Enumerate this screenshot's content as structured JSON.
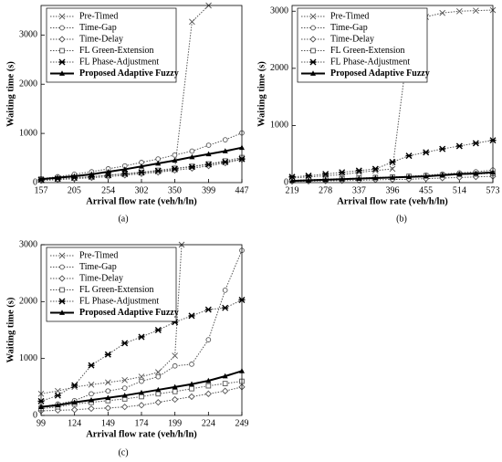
{
  "chart_data": [
    {
      "type": "line",
      "label": "(a)",
      "x_label": "Arrival flow rate (veh/h/ln)",
      "y_label": "Waiting time (s)",
      "x": [
        157,
        181,
        205,
        230,
        254,
        278,
        302,
        326,
        350,
        375,
        399,
        423,
        447
      ],
      "xlim": [
        157,
        447
      ],
      "xticks": [
        157,
        205,
        254,
        302,
        350,
        399,
        447
      ],
      "ylim": [
        0,
        3600
      ],
      "yticks": [
        0,
        1000,
        2000,
        3000
      ],
      "legend": "upper left",
      "series": [
        {
          "name": "Pre-Timed",
          "color": "#555555",
          "marker": "x",
          "dash": "dotted",
          "line_width": 1,
          "values": [
            60,
            80,
            100,
            120,
            150,
            170,
            200,
            230,
            260,
            3270,
            3600,
            null,
            null
          ]
        },
        {
          "name": "Time-Gap",
          "color": "#555555",
          "marker": "circle",
          "dash": "dotted",
          "line_width": 1,
          "values": [
            80,
            120,
            170,
            220,
            280,
            340,
            410,
            480,
            560,
            640,
            760,
            870,
            1010
          ]
        },
        {
          "name": "Time-Delay",
          "color": "#555555",
          "marker": "diamond",
          "dash": "dotted",
          "line_width": 1,
          "values": [
            40,
            60,
            80,
            100,
            120,
            150,
            180,
            210,
            250,
            290,
            340,
            400,
            470
          ]
        },
        {
          "name": "FL Green-Extension",
          "color": "#555555",
          "marker": "square",
          "dash": "dotted",
          "line_width": 1,
          "values": [
            50,
            70,
            90,
            120,
            150,
            180,
            210,
            250,
            290,
            330,
            380,
            440,
            510
          ]
        },
        {
          "name": "FL Phase-Adjustment",
          "color": "#555555",
          "marker": "star",
          "dash": "dotted",
          "line_width": 1,
          "values": [
            60,
            80,
            100,
            120,
            150,
            180,
            210,
            240,
            280,
            320,
            370,
            420,
            480
          ]
        },
        {
          "name": "Proposed Adaptive Fuzzy",
          "color": "#000000",
          "marker": "triangle",
          "dash": "solid",
          "line_width": 2,
          "values": [
            70,
            100,
            130,
            170,
            220,
            270,
            330,
            390,
            450,
            520,
            580,
            640,
            710
          ]
        }
      ]
    },
    {
      "type": "line",
      "label": "(b)",
      "x_label": "Arrival flow rate (veh/h/ln)",
      "y_label": "Waiting time (s)",
      "x": [
        219,
        248,
        278,
        307,
        337,
        366,
        396,
        425,
        455,
        484,
        514,
        543,
        573
      ],
      "xlim": [
        219,
        573
      ],
      "xticks": [
        219,
        278,
        337,
        396,
        455,
        514,
        573
      ],
      "ylim": [
        0,
        3100
      ],
      "yticks": [
        0,
        1000,
        2000,
        3000
      ],
      "legend": "upper left",
      "series": [
        {
          "name": "Pre-Timed",
          "color": "#555555",
          "marker": "x",
          "dash": "dotted",
          "line_width": 1,
          "values": [
            80,
            100,
            120,
            140,
            180,
            210,
            240,
            2500,
            2900,
            2970,
            3000,
            3010,
            3020
          ]
        },
        {
          "name": "Time-Gap",
          "color": "#555555",
          "marker": "circle",
          "dash": "dotted",
          "line_width": 1,
          "values": [
            30,
            40,
            50,
            60,
            70,
            80,
            90,
            110,
            130,
            150,
            170,
            190,
            220
          ]
        },
        {
          "name": "Time-Delay",
          "color": "#555555",
          "marker": "diamond",
          "dash": "dotted",
          "line_width": 1,
          "values": [
            20,
            25,
            30,
            35,
            40,
            50,
            55,
            60,
            70,
            80,
            90,
            100,
            110
          ]
        },
        {
          "name": "FL Green-Extension",
          "color": "#555555",
          "marker": "square",
          "dash": "dotted",
          "line_width": 1,
          "values": [
            40,
            50,
            60,
            70,
            80,
            90,
            100,
            110,
            120,
            130,
            140,
            150,
            160
          ]
        },
        {
          "name": "FL Phase-Adjustment",
          "color": "#555555",
          "marker": "star",
          "dash": "dotted",
          "line_width": 1,
          "values": [
            100,
            120,
            150,
            180,
            210,
            240,
            360,
            470,
            530,
            590,
            640,
            690,
            740
          ]
        },
        {
          "name": "Proposed Adaptive Fuzzy",
          "color": "#000000",
          "marker": "triangle",
          "dash": "solid",
          "line_width": 2,
          "values": [
            30,
            40,
            50,
            60,
            70,
            80,
            90,
            100,
            110,
            130,
            150,
            160,
            180
          ]
        }
      ]
    },
    {
      "type": "line",
      "label": "(c)",
      "x_label": "Arrival flow rate (veh/h/ln)",
      "y_label": "Waiting time (s)",
      "x": [
        99,
        111.5,
        124,
        136.5,
        149,
        161.5,
        174,
        186.5,
        199,
        211.5,
        224,
        236.5,
        249
      ],
      "xlim": [
        99,
        249
      ],
      "xticks": [
        99,
        124,
        149,
        174,
        199,
        224,
        249
      ],
      "ylim": [
        0,
        3000
      ],
      "yticks": [
        0,
        1000,
        2000,
        3000
      ],
      "legend": "upper left",
      "series": [
        {
          "name": "Pre-Timed",
          "color": "#555555",
          "marker": "x",
          "dash": "dotted",
          "line_width": 1,
          "x": [
            99,
            111.5,
            124,
            136.5,
            149,
            161.5,
            174,
            186.5,
            199,
            204
          ],
          "values": [
            380,
            430,
            500,
            540,
            580,
            620,
            680,
            760,
            1050,
            3000
          ]
        },
        {
          "name": "Time-Gap",
          "color": "#555555",
          "marker": "circle",
          "dash": "dotted",
          "line_width": 1,
          "values": [
            150,
            200,
            260,
            380,
            430,
            480,
            600,
            680,
            870,
            900,
            1330,
            2200,
            2900
          ]
        },
        {
          "name": "Time-Delay",
          "color": "#555555",
          "marker": "diamond",
          "dash": "dotted",
          "line_width": 1,
          "values": [
            80,
            90,
            100,
            120,
            130,
            150,
            180,
            230,
            280,
            330,
            380,
            430,
            500
          ]
        },
        {
          "name": "FL Green-Extension",
          "color": "#555555",
          "marker": "square",
          "dash": "dotted",
          "line_width": 1,
          "values": [
            120,
            150,
            200,
            230,
            260,
            290,
            330,
            380,
            420,
            470,
            520,
            560,
            600
          ]
        },
        {
          "name": "FL Phase-Adjustment",
          "color": "#555555",
          "marker": "star",
          "dash": "dotted",
          "line_width": 1,
          "values": [
            250,
            350,
            530,
            880,
            1070,
            1270,
            1380,
            1500,
            1640,
            1750,
            1860,
            1890,
            2030
          ]
        },
        {
          "name": "Proposed Adaptive Fuzzy",
          "color": "#000000",
          "marker": "triangle",
          "dash": "solid",
          "line_width": 2,
          "values": [
            150,
            180,
            230,
            270,
            310,
            350,
            400,
            450,
            500,
            550,
            610,
            690,
            780
          ]
        }
      ]
    }
  ]
}
